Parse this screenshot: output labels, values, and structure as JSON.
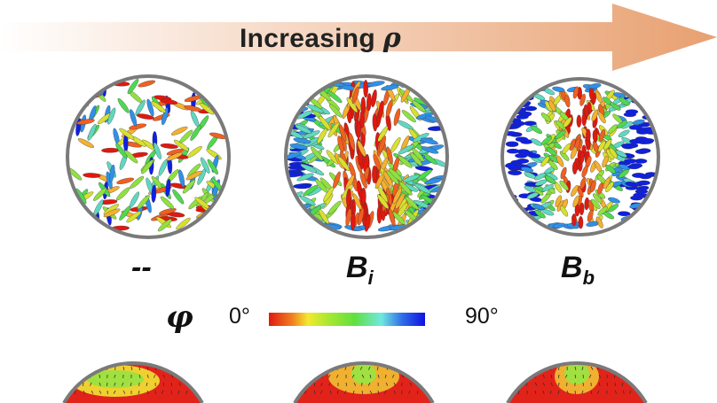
{
  "header": {
    "text": "Increasing",
    "symbol": "ρ"
  },
  "panels": [
    {
      "label": "--",
      "sub": ""
    },
    {
      "label": "B",
      "sub": "i"
    },
    {
      "label": "B",
      "sub": "b"
    }
  ],
  "colorbar": {
    "symbol": "φ",
    "min_label": "0°",
    "max_label": "90°",
    "colors": [
      "#e0190f",
      "#f08020",
      "#f4e830",
      "#60e040",
      "#70e8e0",
      "#1010e0"
    ]
  },
  "colors": {
    "arrow_start": "#ffffff",
    "arrow_end": "#e8a070",
    "rim": "#7a7a7a",
    "field_red": "#e2231a"
  }
}
